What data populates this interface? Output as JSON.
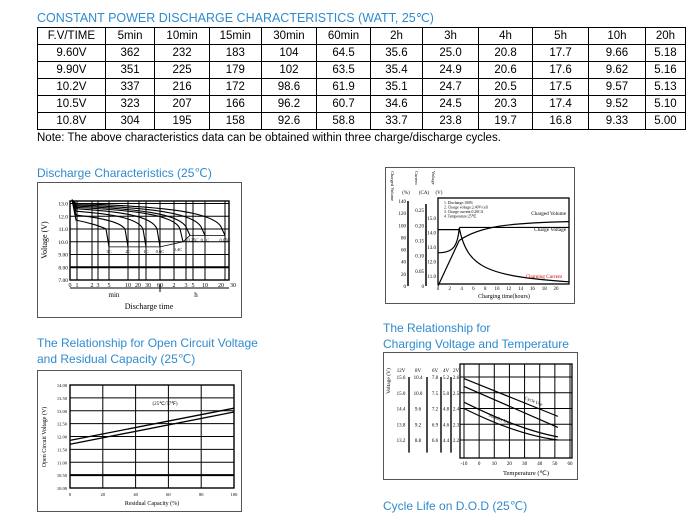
{
  "table": {
    "title": "CONSTANT POWER DISCHARGE CHARACTERISTICS (WATT, 25℃)",
    "headers": [
      "F.V/TIME",
      "5min",
      "10min",
      "15min",
      "30min",
      "60min",
      "2h",
      "3h",
      "4h",
      "5h",
      "10h",
      "20h"
    ],
    "rows": [
      [
        "9.60V",
        "362",
        "232",
        "183",
        "104",
        "64.5",
        "35.6",
        "25.0",
        "20.8",
        "17.7",
        "9.66",
        "5.18"
      ],
      [
        "9.90V",
        "351",
        "225",
        "179",
        "102",
        "63.5",
        "35.4",
        "24.9",
        "20.6",
        "17.6",
        "9.62",
        "5.16"
      ],
      [
        "10.2V",
        "337",
        "216",
        "172",
        "98.6",
        "61.9",
        "35.1",
        "24.7",
        "20.5",
        "17.5",
        "9.57",
        "5.13"
      ],
      [
        "10.5V",
        "323",
        "207",
        "166",
        "96.2",
        "60.7",
        "34.6",
        "24.5",
        "20.3",
        "17.4",
        "9.52",
        "5.10"
      ],
      [
        "10.8V",
        "304",
        "195",
        "158",
        "92.6",
        "58.8",
        "33.7",
        "23.8",
        "19.7",
        "16.8",
        "9.33",
        "5.00"
      ]
    ],
    "note": "Note: The above characteristics data can be obtained within three charge/discharge cycles."
  },
  "discharge": {
    "title": "Discharge Characteristics (25℃)",
    "ylabel": "Voltage (V)",
    "xlabel": "Discharge time",
    "yticks": [
      "13.0",
      "12.0",
      "11.0",
      "10.0",
      "9.00",
      "8.00",
      "7.00"
    ],
    "xticks": [
      "0",
      "1",
      "2",
      "3",
      "5",
      "10",
      "20",
      "30",
      "60",
      "2",
      "3",
      "5",
      "10",
      "20",
      "30"
    ],
    "unit_min": "min",
    "unit_h": "h",
    "curve_labels": [
      "3C",
      "2C",
      "1C",
      "0.6C",
      "0.4C",
      "0.25C",
      "0.1C",
      "0.05C"
    ]
  },
  "ocv": {
    "title_line1": "The Relationship for Open Circuit Voltage",
    "title_line2": "and Residual Capacity (25℃)",
    "ylabel": "Open Circuit Voltage (V)",
    "xlabel": "Residual Capacity (%)",
    "annotation": "(25℃/77℉)",
    "yticks": [
      "14.00",
      "13.50",
      "13.00",
      "12.50",
      "12.00",
      "11.50",
      "11.00",
      "10.50",
      "10.00"
    ],
    "xticks": [
      "0",
      "20",
      "40",
      "60",
      "80",
      "100"
    ]
  },
  "charging": {
    "axis_headers": [
      "Charged Volume",
      "Current",
      "Voltage"
    ],
    "axis_units": [
      "(%)",
      "(CA)",
      "(V)"
    ],
    "volume_ticks": [
      "140",
      "120",
      "100",
      "80",
      "60",
      "40",
      "20",
      "0"
    ],
    "current_ticks": [
      "0.25",
      "0.20",
      "0.15",
      "0.10",
      "0.05",
      "0"
    ],
    "voltage_ticks": [
      "15.0",
      "14.0",
      "13.0",
      "12.0",
      "11.0"
    ],
    "xticks": [
      "0",
      "2",
      "4",
      "6",
      "8",
      "10",
      "12",
      "14",
      "16",
      "18",
      "20"
    ],
    "xlabel": "Charging time(hours)",
    "conditions": [
      "1. Discharge:100%",
      "2. Charge voltage:2.40V/cell",
      "3. Charge current:0.20CA",
      "4. Temperature:25℃"
    ],
    "series_labels": [
      "Charged Volume",
      "Charge Voltage",
      "Charging Current"
    ]
  },
  "temp": {
    "title_line1": "The Relationship for",
    "title_line2": "Charging Voltage and Temperature",
    "ylabel": "Voltage (V)",
    "xlabel": "Temperature (℃)",
    "col_headers": [
      "12V",
      "8V",
      "6V",
      "4V",
      "2V"
    ],
    "rows": [
      [
        "15.6",
        "10.4",
        "7.8",
        "5.2",
        "2.6"
      ],
      [
        "15.0",
        "10.0",
        "7.5",
        "5.0",
        "2.5"
      ],
      [
        "14.4",
        "9.6",
        "7.2",
        "4.8",
        "2.4"
      ],
      [
        "13.8",
        "9.2",
        "6.9",
        "4.6",
        "2.3"
      ],
      [
        "13.2",
        "8.8",
        "6.6",
        "4.4",
        "2.2"
      ]
    ],
    "xticks": [
      "-10",
      "0",
      "10",
      "20",
      "30",
      "40",
      "50",
      "60"
    ],
    "band_labels": [
      "Cycle Use",
      "Standby Use"
    ]
  },
  "cycle_life": {
    "title": "Cycle Life on D.O.D (25℃)"
  },
  "colors": {
    "heading": "#2f8bd0"
  }
}
